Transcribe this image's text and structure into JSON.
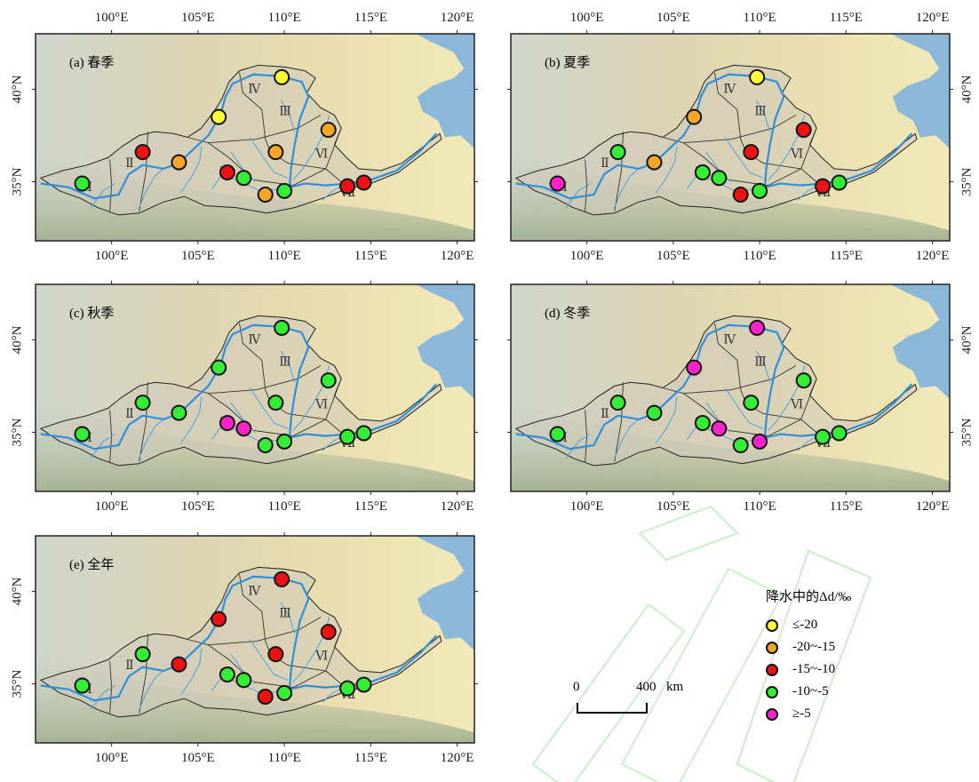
{
  "colors": {
    "class_le_-20": "#ffff33",
    "class_-20_-15": "#f5a623",
    "class_-15_-10": "#ee1111",
    "class_-10_-5": "#33ee33",
    "class_ge_-5": "#ff22cc"
  },
  "axes": {
    "lon_labels": [
      "100°E",
      "105°E",
      "110°E",
      "115°E",
      "120°E"
    ],
    "lat_labels": [
      "40°N",
      "35°N"
    ]
  },
  "regions": [
    "Ⅰ",
    "Ⅱ",
    "Ⅲ",
    "Ⅳ",
    "Ⅴ",
    "Ⅵ",
    "Ⅶ"
  ],
  "stations": [
    {
      "lon": 98.3,
      "lat": 34.9
    },
    {
      "lon": 101.8,
      "lat": 36.6
    },
    {
      "lon": 103.9,
      "lat": 36.05
    },
    {
      "lon": 106.2,
      "lat": 38.5
    },
    {
      "lon": 109.85,
      "lat": 40.65
    },
    {
      "lon": 106.7,
      "lat": 35.5
    },
    {
      "lon": 107.65,
      "lat": 35.2
    },
    {
      "lon": 109.5,
      "lat": 36.6
    },
    {
      "lon": 108.9,
      "lat": 34.3
    },
    {
      "lon": 110.0,
      "lat": 34.5
    },
    {
      "lon": 112.55,
      "lat": 37.8
    },
    {
      "lon": 113.65,
      "lat": 34.75
    },
    {
      "lon": 114.6,
      "lat": 34.95
    }
  ],
  "panels": [
    {
      "title": "(a) 春季",
      "classes": [
        "l4",
        "l3",
        "l2",
        "l1",
        "l1",
        "l3",
        "l4",
        "l2",
        "l2",
        "l4",
        "l2",
        "l3",
        "l3"
      ]
    },
    {
      "title": "(b) 夏季",
      "classes": [
        "l5",
        "l4",
        "l2",
        "l2",
        "l1",
        "l4",
        "l4",
        "l3",
        "l3",
        "l4",
        "l3",
        "l3",
        "l4"
      ]
    },
    {
      "title": "(c) 秋季",
      "classes": [
        "l4",
        "l4",
        "l4",
        "l4",
        "l4",
        "l5",
        "l5",
        "l4",
        "l4",
        "l4",
        "l4",
        "l4",
        "l4"
      ]
    },
    {
      "title": "(d) 冬季",
      "classes": [
        "l4",
        "l4",
        "l4",
        "l5",
        "l5",
        "l4",
        "l5",
        "l4",
        "l4",
        "l5",
        "l4",
        "l4",
        "l4"
      ]
    },
    {
      "title": "(e) 全年",
      "classes": [
        "l4",
        "l4",
        "l3",
        "l3",
        "l3",
        "l4",
        "l4",
        "l3",
        "l3",
        "l4",
        "l3",
        "l4",
        "l4"
      ]
    }
  ],
  "legend": {
    "title": "降水中的Δd/‰",
    "items": [
      {
        "key": "l1",
        "label": "≤-20",
        "color": "#ffff33"
      },
      {
        "key": "l2",
        "label": "-20~-15",
        "color": "#f5a623"
      },
      {
        "key": "l3",
        "label": "-15~-10",
        "color": "#ee1111"
      },
      {
        "key": "l4",
        "label": "-10~-5",
        "color": "#33ee33"
      },
      {
        "key": "l5",
        "label": "≥-5",
        "color": "#ff22cc"
      }
    ]
  },
  "scale_bar": {
    "start": "0",
    "end": "400",
    "unit": "km"
  }
}
